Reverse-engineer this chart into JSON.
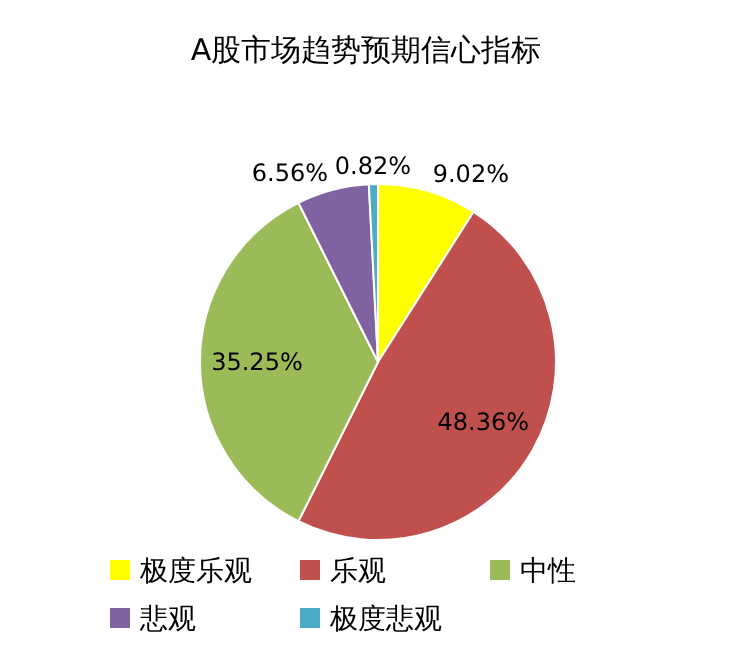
{
  "chart_data": {
    "type": "pie",
    "title": "A股市场趋势预期信心指标",
    "categories": [
      "极度乐观",
      "乐观",
      "中性",
      "悲观",
      "极度悲观"
    ],
    "values": [
      9.02,
      48.36,
      35.25,
      6.56,
      0.82
    ],
    "value_labels": [
      "9.02%",
      "48.36%",
      "35.25%",
      "6.56%",
      "0.82%"
    ],
    "colors": [
      "#ffff00",
      "#c0504d",
      "#9bbb59",
      "#8064a2",
      "#4bacc6"
    ],
    "legend": "bottom"
  }
}
